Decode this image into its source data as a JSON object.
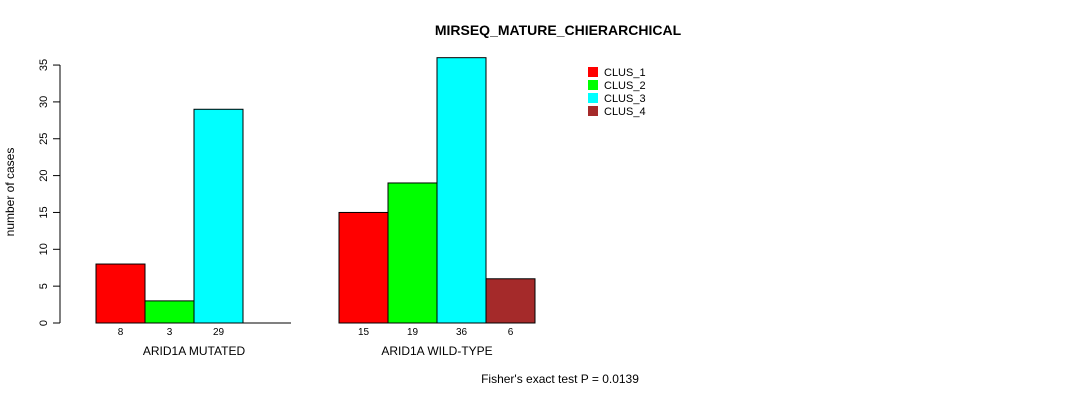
{
  "chart_data": {
    "type": "bar",
    "title": "MIRSEQ_MATURE_CHIERARCHICAL",
    "ylabel": "number of cases",
    "ylim": [
      0,
      35
    ],
    "yticks": [
      0,
      5,
      10,
      15,
      20,
      25,
      30,
      35
    ],
    "categories": [
      "ARID1A MUTATED",
      "ARID1A WILD-TYPE"
    ],
    "series": [
      {
        "name": "CLUS_1",
        "color": "#ff0000",
        "values": [
          8,
          15
        ]
      },
      {
        "name": "CLUS_2",
        "color": "#00ff00",
        "values": [
          3,
          19
        ]
      },
      {
        "name": "CLUS_3",
        "color": "#00ffff",
        "values": [
          29,
          36
        ]
      },
      {
        "name": "CLUS_4",
        "color": "#a52a2a",
        "values": [
          0,
          6
        ]
      }
    ],
    "bar_count_labels": [
      [
        "8",
        "3",
        "29",
        ""
      ],
      [
        "15",
        "19",
        "36",
        "6"
      ]
    ],
    "legend_position": "top-right",
    "grid": false,
    "footnote": "Fisher's exact test P = 0.0139"
  }
}
